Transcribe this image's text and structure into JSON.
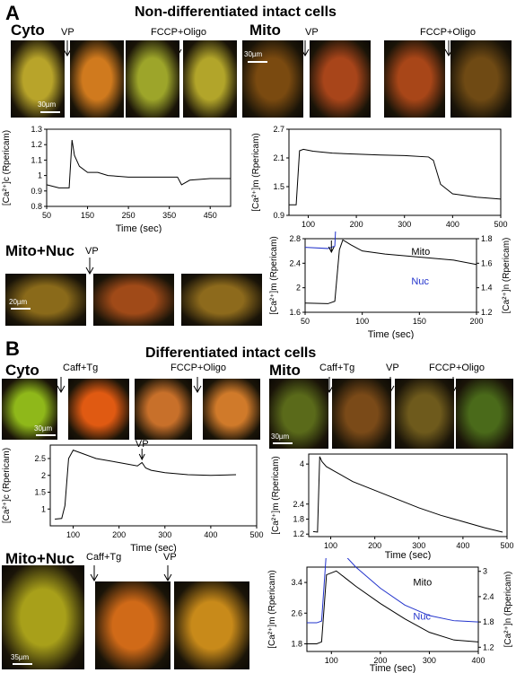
{
  "panelA": {
    "letter": "A",
    "title": "Non-differentiated intact cells",
    "cyto": {
      "label": "Cyto",
      "annot_left": "VP",
      "annot_right": "FCCP+Oligo",
      "scalebar": "30µm",
      "colors": [
        "#b8a42a",
        "#d07a1e",
        "#9da52a",
        "#b2a52a"
      ],
      "chart_data": {
        "type": "line",
        "xlabel": "Time (sec)",
        "ylabel": "[Ca²⁺]c (Rpericam)",
        "xlim": [
          50,
          500
        ],
        "ylim": [
          0.8,
          1.3
        ],
        "xticks": [
          50,
          150,
          250,
          350,
          450
        ],
        "yticks": [
          0.8,
          0.9,
          1.0,
          1.1,
          1.2,
          1.3
        ],
        "x": [
          50,
          80,
          105,
          112,
          118,
          130,
          150,
          175,
          200,
          250,
          300,
          350,
          370,
          380,
          400,
          450,
          500
        ],
        "y": [
          0.94,
          0.92,
          0.92,
          1.23,
          1.13,
          1.06,
          1.02,
          1.02,
          1.0,
          0.99,
          0.99,
          0.99,
          0.99,
          0.94,
          0.97,
          0.98,
          0.98
        ]
      }
    },
    "mito": {
      "label": "Mito",
      "annot_left": "VP",
      "annot_right": "FCCP+Oligo",
      "scalebar": "30µm",
      "colors": [
        "#7a4a10",
        "#a8451a",
        "#a84618",
        "#6f4a14"
      ],
      "chart_data": {
        "type": "line",
        "xlabel": "",
        "ylabel": "[Ca²⁺]m (Rpericam)",
        "xlim": [
          60,
          500
        ],
        "ylim": [
          0.9,
          2.7
        ],
        "xticks": [
          100,
          200,
          300,
          400,
          500
        ],
        "yticks": [
          0.9,
          1.5,
          2.1,
          2.7
        ],
        "x": [
          60,
          75,
          82,
          90,
          110,
          150,
          200,
          250,
          300,
          350,
          360,
          375,
          400,
          450,
          500
        ],
        "y": [
          1.12,
          1.12,
          2.25,
          2.28,
          2.24,
          2.2,
          2.18,
          2.16,
          2.15,
          2.12,
          2.05,
          1.55,
          1.35,
          1.28,
          1.24
        ]
      }
    },
    "mitonuc": {
      "label": "Mito+Nuc",
      "annot": "VP",
      "scalebar": "20µm",
      "colors": [
        "#8a6a1a",
        "#a04a18",
        "#8d6a1c"
      ],
      "chart_data": {
        "type": "line",
        "xlabel": "Time (sec)",
        "ylabel_left": "[Ca²⁺]m (Rpericam)",
        "ylabel_right": "[Ca²⁺]n (Rpericam)",
        "xlim": [
          50,
          200
        ],
        "ylim_left": [
          1.6,
          2.8
        ],
        "ylim_right": [
          1.2,
          1.8
        ],
        "xticks": [
          50,
          100,
          150,
          200
        ],
        "yticks_left": [
          1.6,
          2.0,
          2.4,
          2.8
        ],
        "yticks_right": [
          1.2,
          1.4,
          1.6,
          1.8
        ],
        "series": [
          {
            "name": "Mito",
            "color": "#000000",
            "x": [
              50,
              70,
              76,
              80,
              83,
              90,
              100,
              120,
              150,
              180,
              200
            ],
            "y": [
              1.75,
              1.74,
              1.78,
              2.62,
              2.78,
              2.7,
              2.6,
              2.55,
              2.5,
              2.45,
              2.38
            ]
          },
          {
            "name": "Nuc",
            "color": "#2233cc",
            "x": [
              50,
              70,
              76,
              80,
              83,
              90,
              100,
              120,
              150,
              180,
              200
            ],
            "y": [
              1.73,
              1.72,
              1.74,
              2.55,
              2.72,
              2.5,
              2.25,
              2.12,
              2.05,
              1.98,
              1.93
            ]
          }
        ]
      }
    }
  },
  "panelB": {
    "letter": "B",
    "title": "Differentiated intact cells",
    "cyto": {
      "label": "Cyto",
      "annot_left": "Caff+Tg",
      "annot_right": "FCCP+Oligo",
      "scalebar": "30µm",
      "colors": [
        "#8fb81a",
        "#e05a12",
        "#c8702a",
        "#d07a2a"
      ],
      "chart_data": {
        "type": "line",
        "annotation": "VP",
        "xlabel": "Time (sec)",
        "ylabel": "[Ca²⁺]c (Rpericam)",
        "xlim": [
          50,
          500
        ],
        "ylim": [
          0.5,
          2.9
        ],
        "xticks": [
          100,
          200,
          300,
          400,
          500
        ],
        "yticks": [
          1.0,
          1.5,
          2.0,
          2.5
        ],
        "x": [
          60,
          75,
          82,
          90,
          100,
          120,
          150,
          200,
          240,
          250,
          258,
          270,
          300,
          350,
          400,
          455
        ],
        "y": [
          0.7,
          0.72,
          1.1,
          2.5,
          2.75,
          2.65,
          2.5,
          2.38,
          2.28,
          2.38,
          2.22,
          2.15,
          2.08,
          2.02,
          2.0,
          2.02
        ]
      }
    },
    "mito": {
      "label": "Mito",
      "annot_1": "Caff+Tg",
      "annot_2": "VP",
      "annot_3": "FCCP+Oligo",
      "scalebar": "30µm",
      "colors": [
        "#5a6a1a",
        "#7a4a18",
        "#6e5a1c",
        "#4a6a1a"
      ],
      "chart_data": {
        "type": "line",
        "xlabel": "Time (sec)",
        "ylabel": "[Ca²⁺]m (Rpericam)",
        "xlim": [
          50,
          500
        ],
        "ylim": [
          1.1,
          4.4
        ],
        "xticks": [
          100,
          200,
          300,
          400,
          500
        ],
        "yticks": [
          1.2,
          1.8,
          2.4,
          4
        ],
        "x": [
          60,
          70,
          75,
          80,
          90,
          110,
          150,
          200,
          250,
          300,
          350,
          400,
          450,
          490
        ],
        "y": [
          1.3,
          1.28,
          4.3,
          4.1,
          3.9,
          3.7,
          3.3,
          2.95,
          2.6,
          2.25,
          1.95,
          1.7,
          1.45,
          1.28
        ]
      }
    },
    "mitonuc": {
      "label": "Mito+Nuc",
      "annot_1": "Caff+Tg",
      "annot_2": "VP",
      "scalebar": "35µm",
      "colors": [
        "#a8a01a",
        "#d06a18",
        "#c88a1a"
      ],
      "chart_data": {
        "type": "line",
        "xlabel": "Time (sec)",
        "ylabel_left": "[Ca²⁺]m (Rpericam)",
        "ylabel_right": "[Ca²⁺]n (Rpericam)",
        "xlim": [
          50,
          400
        ],
        "ylim_left": [
          1.6,
          3.8
        ],
        "ylim_right": [
          1.1,
          3.1
        ],
        "xticks": [
          100,
          200,
          300,
          400
        ],
        "yticks_left": [
          1.8,
          2.6,
          3.4
        ],
        "yticks_right": [
          1.2,
          1.8,
          2.4,
          3.0
        ],
        "series": [
          {
            "name": "Mito",
            "color": "#000000",
            "x": [
              50,
              70,
              80,
              90,
              110,
              130,
              150,
              200,
              250,
              300,
              350,
              400
            ],
            "y": [
              1.8,
              1.8,
              1.85,
              3.6,
              3.7,
              3.5,
              3.3,
              2.85,
              2.45,
              2.1,
              1.9,
              1.85
            ]
          },
          {
            "name": "Nuc",
            "color": "#2233cc",
            "x": [
              50,
              70,
              80,
              90,
              110,
              130,
              150,
              200,
              250,
              300,
              350,
              400
            ],
            "y": [
              1.78,
              1.78,
              1.82,
              3.5,
              3.6,
              3.35,
              3.1,
              2.6,
              2.2,
              1.95,
              1.83,
              1.8
            ]
          }
        ]
      }
    }
  }
}
